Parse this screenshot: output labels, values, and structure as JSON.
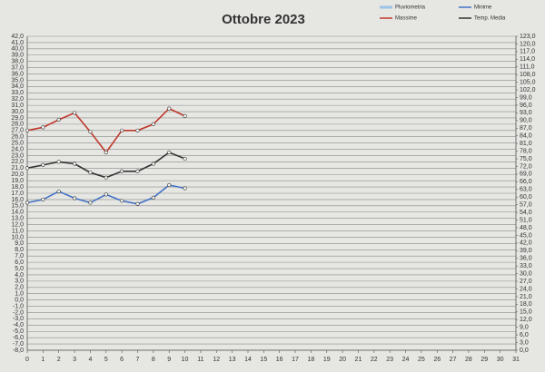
{
  "chart_data": {
    "type": "line",
    "title": "Ottobre 2023",
    "x": [
      0,
      1,
      2,
      3,
      4,
      5,
      6,
      7,
      8,
      9,
      10
    ],
    "xlim": [
      0,
      31
    ],
    "xticks": [
      0,
      1,
      2,
      3,
      4,
      5,
      6,
      7,
      8,
      9,
      10,
      11,
      12,
      13,
      14,
      15,
      16,
      17,
      18,
      19,
      20,
      21,
      22,
      23,
      24,
      25,
      26,
      27,
      28,
      29,
      30,
      31
    ],
    "legend_only": [
      {
        "name": "Pluviometria",
        "color": "#9cc3e6"
      }
    ],
    "series": [
      {
        "name": "Minime",
        "color": "#4472c4",
        "values": [
          15.5,
          16.0,
          17.3,
          16.2,
          15.5,
          16.8,
          15.8,
          15.3,
          16.3,
          18.3,
          17.8
        ]
      },
      {
        "name": "Massime",
        "color": "#c0392b",
        "values": [
          27.0,
          27.5,
          28.7,
          29.8,
          26.8,
          23.5,
          27.0,
          27.0,
          28.0,
          30.5,
          29.3
        ]
      },
      {
        "name": "Temp. Media",
        "color": "#333333",
        "values": [
          21.0,
          21.5,
          22.0,
          21.7,
          20.3,
          19.5,
          20.5,
          20.5,
          21.7,
          23.5,
          22.5
        ]
      }
    ],
    "ylim": [
      -8,
      42
    ],
    "yticks": [
      {
        "value": 42,
        "label": "42,0"
      },
      {
        "value": 41,
        "label": "41,0"
      },
      {
        "value": 40,
        "label": "40,0"
      },
      {
        "value": 39,
        "label": "39,0"
      },
      {
        "value": 38,
        "label": "38,0"
      },
      {
        "value": 37,
        "label": "37,0"
      },
      {
        "value": 36,
        "label": "36,0"
      },
      {
        "value": 35,
        "label": "35,0"
      },
      {
        "value": 34,
        "label": "34,0"
      },
      {
        "value": 33,
        "label": "33,0"
      },
      {
        "value": 32,
        "label": "32,0"
      },
      {
        "value": 31,
        "label": "31,0"
      },
      {
        "value": 30,
        "label": "30,0"
      },
      {
        "value": 29,
        "label": "29,0"
      },
      {
        "value": 28,
        "label": "28,0"
      },
      {
        "value": 27,
        "label": "27,0"
      },
      {
        "value": 26,
        "label": "26,0"
      },
      {
        "value": 25,
        "label": "25,0"
      },
      {
        "value": 24,
        "label": "24,0"
      },
      {
        "value": 23,
        "label": "23,0"
      },
      {
        "value": 22,
        "label": "22,0"
      },
      {
        "value": 21,
        "label": "21,0"
      },
      {
        "value": 20,
        "label": "20,0"
      },
      {
        "value": 19,
        "label": "19,0"
      },
      {
        "value": 18,
        "label": "18,0"
      },
      {
        "value": 17,
        "label": "17,0"
      },
      {
        "value": 16,
        "label": "16,0"
      },
      {
        "value": 15,
        "label": "15,0"
      },
      {
        "value": 14,
        "label": "14,0"
      },
      {
        "value": 13,
        "label": "13,0"
      },
      {
        "value": 12,
        "label": "12,0"
      },
      {
        "value": 11,
        "label": "11,0"
      },
      {
        "value": 10,
        "label": "10,0"
      },
      {
        "value": 9,
        "label": "9,0"
      },
      {
        "value": 8,
        "label": "8,0"
      },
      {
        "value": 7,
        "label": "7,0"
      },
      {
        "value": 6,
        "label": "6,0"
      },
      {
        "value": 5,
        "label": "5,0"
      },
      {
        "value": 4,
        "label": "4,0"
      },
      {
        "value": 3,
        "label": "3,0"
      },
      {
        "value": 2,
        "label": "2,0"
      },
      {
        "value": 1,
        "label": "1,0"
      },
      {
        "value": 0,
        "label": "0,0"
      },
      {
        "value": -1,
        "label": "-1,0"
      },
      {
        "value": -2,
        "label": "-2,0"
      },
      {
        "value": -3,
        "label": "-3,0"
      },
      {
        "value": -4,
        "label": "-4,0"
      },
      {
        "value": -5,
        "label": "-5,0"
      },
      {
        "value": -6,
        "label": "-6,0"
      },
      {
        "value": -7,
        "label": "-7,0"
      },
      {
        "value": -8,
        "label": "-8,0"
      }
    ],
    "y2lim": [
      0,
      123
    ],
    "y2ticks": [
      {
        "value": 123,
        "label": "123,0"
      },
      {
        "value": 120,
        "label": "120,0"
      },
      {
        "value": 117,
        "label": "117,0"
      },
      {
        "value": 114,
        "label": "114,0"
      },
      {
        "value": 111,
        "label": "111,0"
      },
      {
        "value": 108,
        "label": "108,0"
      },
      {
        "value": 105,
        "label": "105,0"
      },
      {
        "value": 102,
        "label": "102,0"
      },
      {
        "value": 99,
        "label": "99,0"
      },
      {
        "value": 96,
        "label": "96,0"
      },
      {
        "value": 93,
        "label": "93,0"
      },
      {
        "value": 90,
        "label": "90,0"
      },
      {
        "value": 87,
        "label": "87,0"
      },
      {
        "value": 84,
        "label": "84,0"
      },
      {
        "value": 81,
        "label": "81,0"
      },
      {
        "value": 78,
        "label": "78,0"
      },
      {
        "value": 75,
        "label": "75,0"
      },
      {
        "value": 72,
        "label": "72,0"
      },
      {
        "value": 69,
        "label": "69,0"
      },
      {
        "value": 66,
        "label": "66,0"
      },
      {
        "value": 63,
        "label": "63,0"
      },
      {
        "value": 60,
        "label": "60,0"
      },
      {
        "value": 57,
        "label": "57,0"
      },
      {
        "value": 54,
        "label": "54,0"
      },
      {
        "value": 51,
        "label": "51,0"
      },
      {
        "value": 48,
        "label": "48,0"
      },
      {
        "value": 45,
        "label": "45,0"
      },
      {
        "value": 42,
        "label": "42,0"
      },
      {
        "value": 39,
        "label": "39,0"
      },
      {
        "value": 36,
        "label": "36,0"
      },
      {
        "value": 33,
        "label": "33,0"
      },
      {
        "value": 30,
        "label": "30,0"
      },
      {
        "value": 27,
        "label": "27,0"
      },
      {
        "value": 24,
        "label": "24,0"
      },
      {
        "value": 21,
        "label": "21,0"
      },
      {
        "value": 18,
        "label": "18,0"
      },
      {
        "value": 15,
        "label": "15,0"
      },
      {
        "value": 12,
        "label": "12,0"
      },
      {
        "value": 9,
        "label": "9,0"
      },
      {
        "value": 6,
        "label": "6,0"
      },
      {
        "value": 3,
        "label": "3,0"
      },
      {
        "value": 0,
        "label": "0,0"
      }
    ],
    "grid": true
  }
}
